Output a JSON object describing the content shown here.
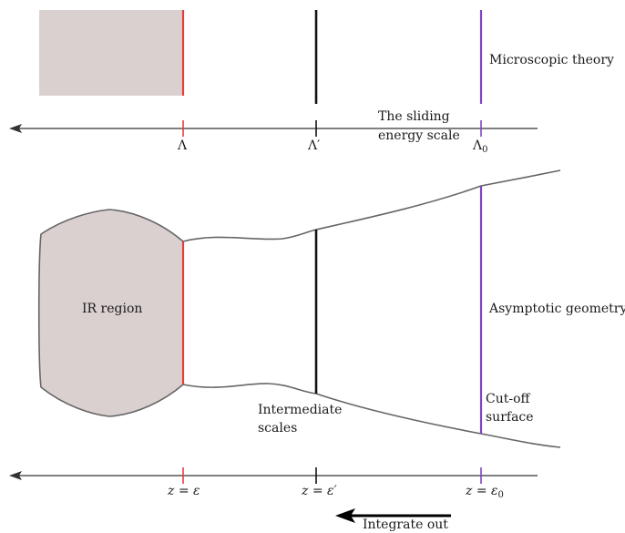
{
  "colors": {
    "ir_fill": "#dbd0d0",
    "red_line": "#e53d3d",
    "black_line": "#111111",
    "purple_line": "#7d44c4",
    "outline": "#666666",
    "axis": "#333333"
  },
  "top": {
    "microscopic_label": "Microscopic theory",
    "sliding_label_line1": "The sliding",
    "sliding_label_line2": "energy scale",
    "tick_lambda": "Λ",
    "tick_lambda_prime": "Λ′",
    "tick_lambda0_base": "Λ",
    "tick_lambda0_sub": "0"
  },
  "bottom": {
    "ir_region_label": "IR region",
    "asymptotic_label": "Asymptotic geometry",
    "cutoff_line1": "Cut-off",
    "cutoff_line2": "surface",
    "intermediate_line1": "Intermediate",
    "intermediate_line2": "scales",
    "tick_z_eps_lhs": "z",
    "tick_z_eps_eq": " = ",
    "tick_z_eps_rhs": "ε",
    "tick_z_epsp_lhs": "z",
    "tick_z_epsp_eq": " = ",
    "tick_z_epsp_rhs": "ε′",
    "tick_z_eps0_lhs": "z",
    "tick_z_eps0_eq": " = ",
    "tick_z_eps0_rhs": "ε",
    "tick_z_eps0_sub": "0",
    "integrate_label": "Integrate out"
  }
}
